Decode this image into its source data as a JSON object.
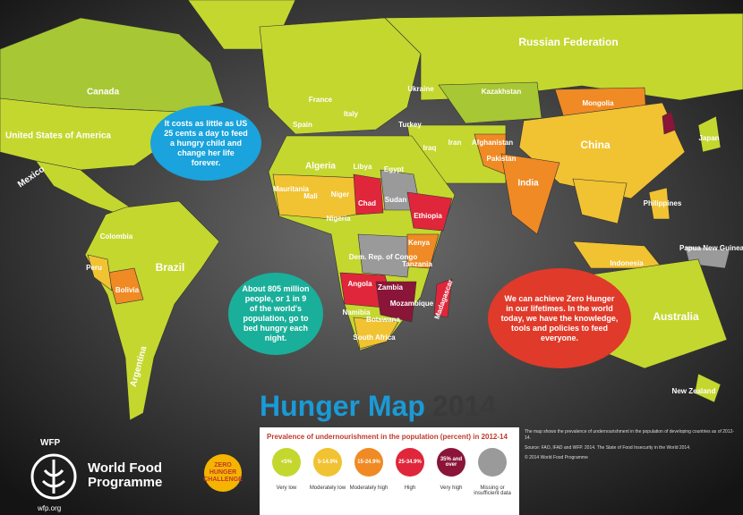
{
  "title": {
    "main": "Hunger Map",
    "year": "2014"
  },
  "callouts": [
    "It costs as little as US 25 cents a day to feed a hungry child and change her life forever.",
    "About 805 million people, or 1 in 9 of the world's population, go to bed hungry each night.",
    "We can achieve Zero Hunger in our lifetimes. In the world today, we have the knowledge, tools and policies to feed everyone."
  ],
  "countries": [
    "Russian Federation",
    "Canada",
    "United States of America",
    "Mexico",
    "Colombia",
    "Peru",
    "Brazil",
    "Bolivia",
    "Argentina",
    "France",
    "Spain",
    "Italy",
    "Ukraine",
    "Turkey",
    "Kazakhstan",
    "Mongolia",
    "China",
    "Japan",
    "Iraq",
    "Iran",
    "Afghanistan",
    "Pakistan",
    "India",
    "Philippines",
    "Indonesia",
    "Papua New Guinea",
    "Australia",
    "New Zealand",
    "Algeria",
    "Libya",
    "Egypt",
    "Mauritania",
    "Mali",
    "Niger",
    "Chad",
    "Sudan",
    "Nigeria",
    "Ethiopia",
    "Kenya",
    "Dem. Rep. of Congo",
    "Tanzania",
    "Angola",
    "Zambia",
    "Namibia",
    "Botswana",
    "Mozambique",
    "Madagascar",
    "South Africa"
  ],
  "legend": {
    "title": "Prevalence of undernourishment in the population (percent) in 2012-14",
    "items": [
      {
        "range": "<5%",
        "label": "Very low",
        "color": "#c4d72f"
      },
      {
        "range": "5-14.9%",
        "label": "Moderately low",
        "color": "#f1c232"
      },
      {
        "range": "15-24.9%",
        "label": "Moderately high",
        "color": "#f08a24"
      },
      {
        "range": "25-34.9%",
        "label": "High",
        "color": "#e0263a"
      },
      {
        "range": "35% and over",
        "label": "Very high",
        "color": "#8a1538"
      },
      {
        "label": "Missing or insufficient data",
        "color": "#9a9a9a"
      }
    ]
  },
  "logo": {
    "acronym": "WFP",
    "name": "World Food Programme",
    "url": "wfp.org"
  },
  "badge": [
    "ZERO",
    "HUNGER",
    "CHALLENGE"
  ],
  "notes": [
    "The map shows the prevalence of undernourishment in the population of developing countries as of 2012-14.",
    "Source: FAO, IFAD and WFP. 2014. The State of Food Insecurity in the World 2014.",
    "© 2014 World Food Programme"
  ]
}
